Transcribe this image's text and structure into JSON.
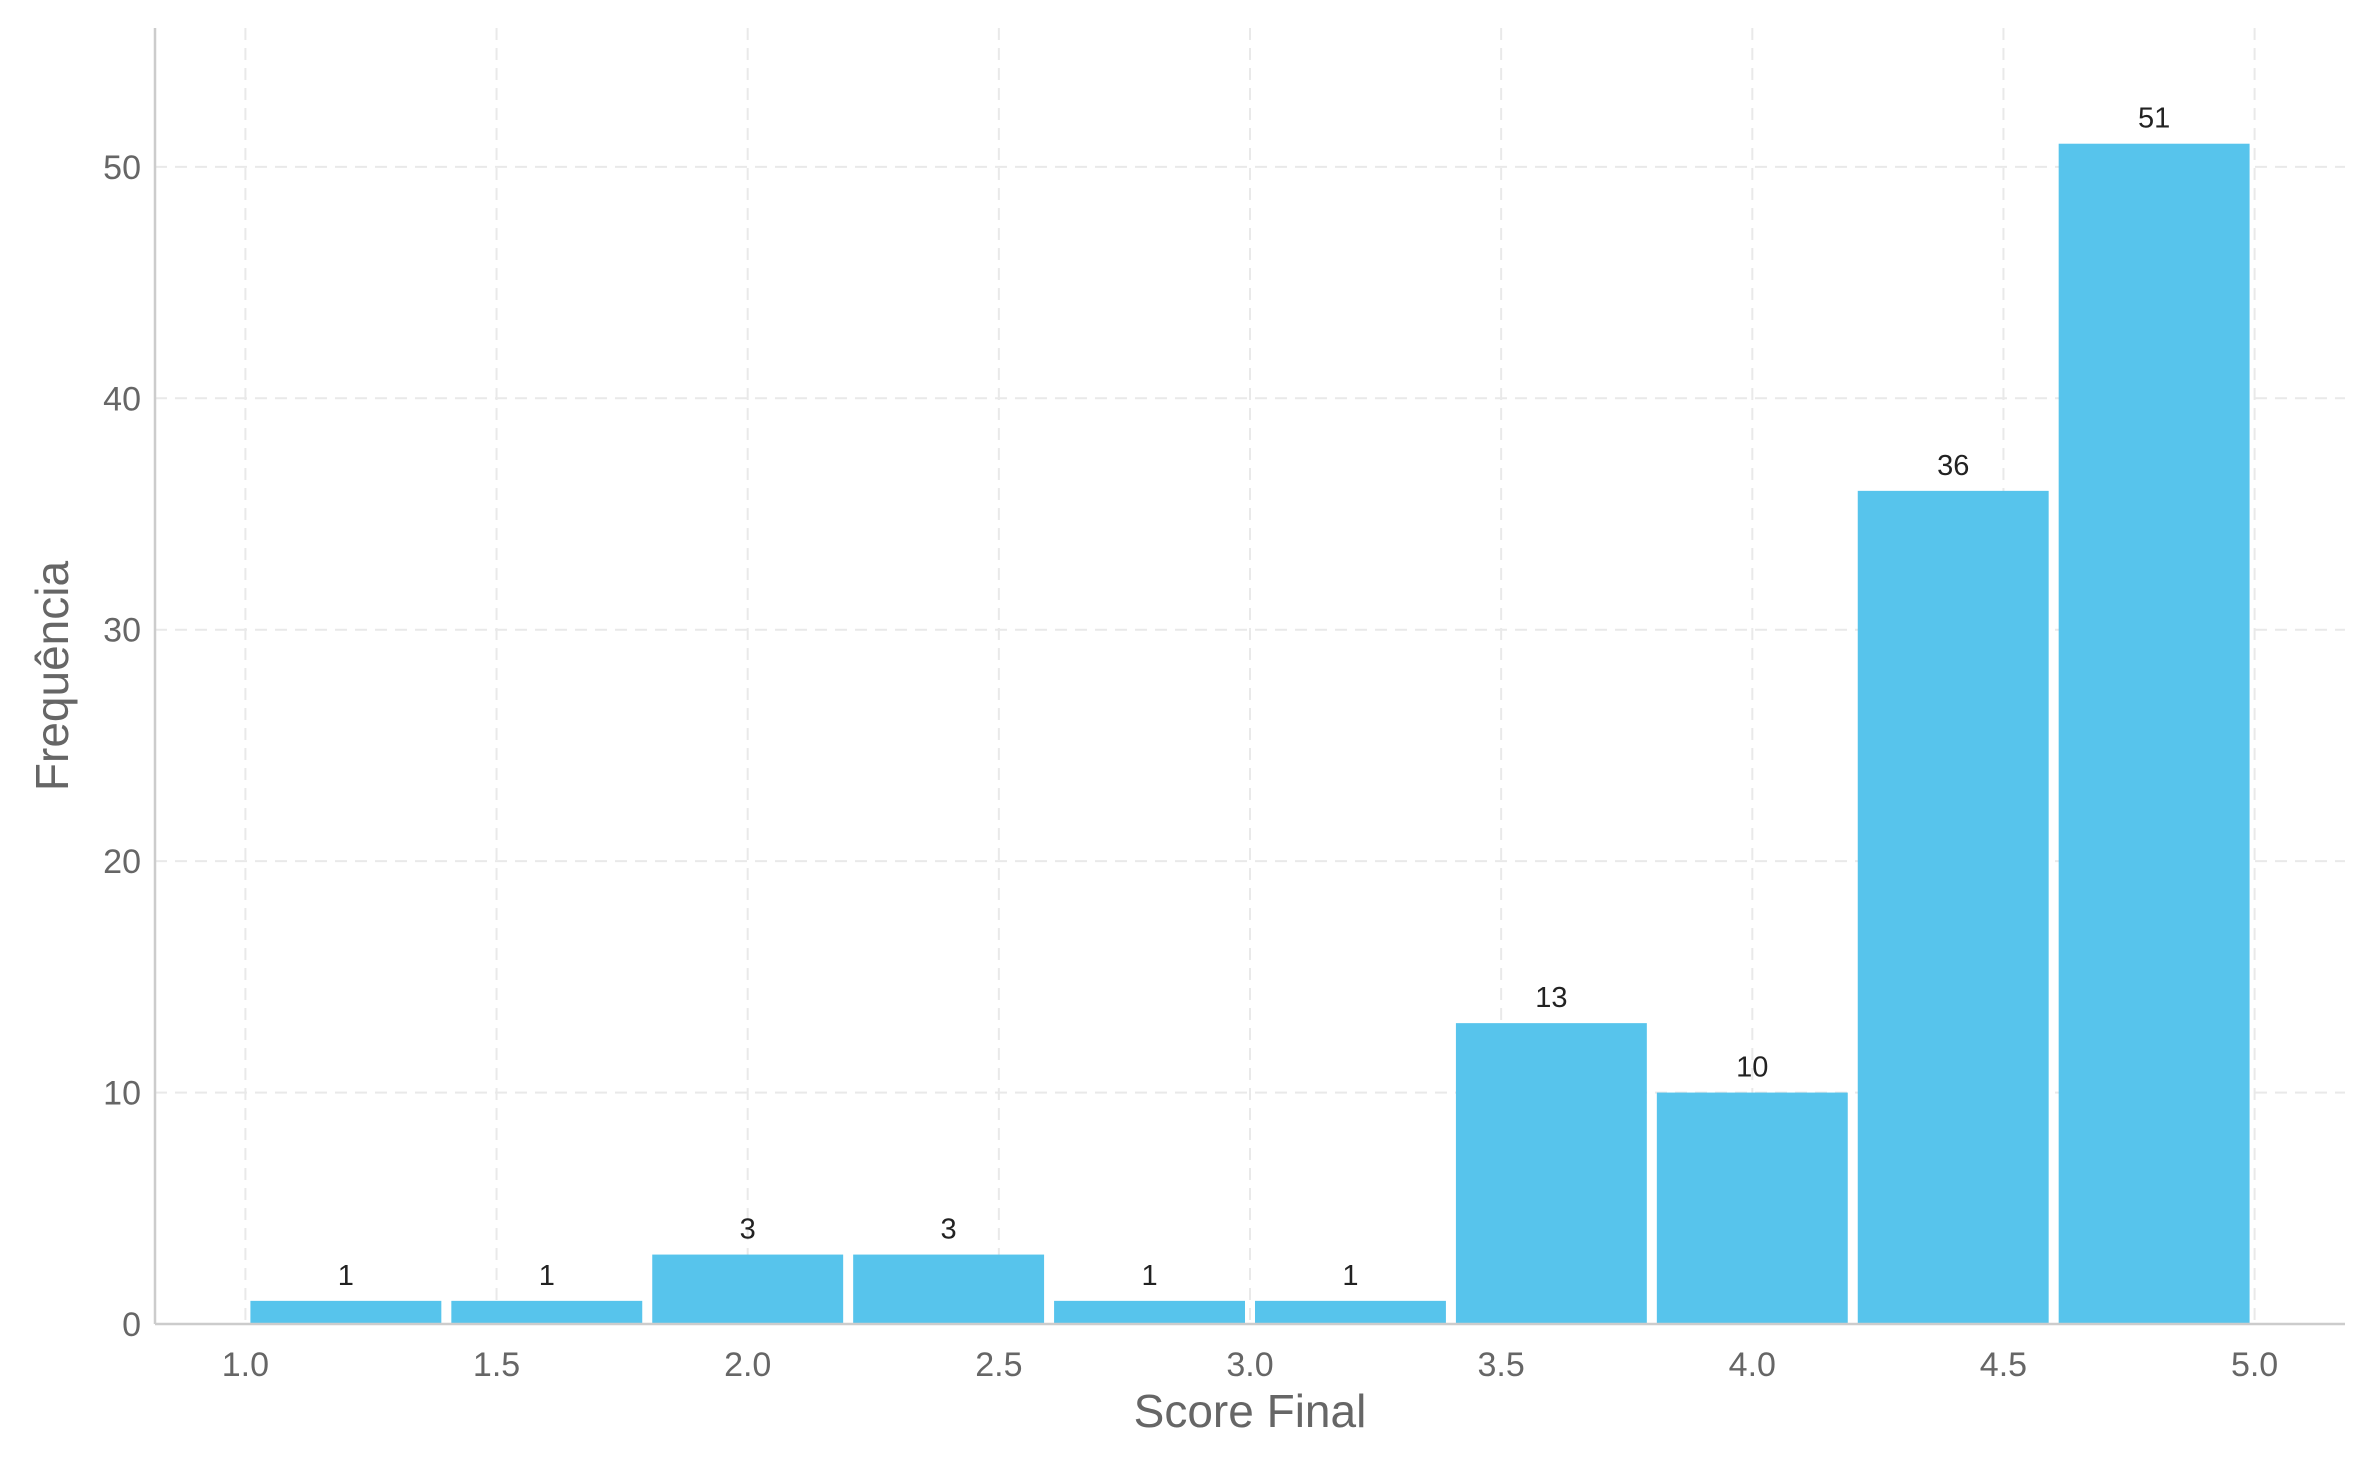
{
  "chart_data": {
    "type": "bar",
    "title": "",
    "xlabel": "Score Final",
    "ylabel": "Frequência",
    "bin_edges": [
      1.0,
      1.4,
      1.8,
      2.2,
      2.6,
      3.0,
      3.4,
      3.8,
      4.2,
      4.6,
      5.0
    ],
    "values": [
      1,
      1,
      3,
      3,
      1,
      1,
      13,
      10,
      36,
      51
    ],
    "value_labels": [
      "1",
      "1",
      "3",
      "3",
      "1",
      "1",
      "13",
      "10",
      "36",
      "51"
    ],
    "x_ticks": [
      1.0,
      1.5,
      2.0,
      2.5,
      3.0,
      3.5,
      4.0,
      4.5,
      5.0
    ],
    "x_tick_labels": [
      "1.0",
      "1.5",
      "2.0",
      "2.5",
      "3.0",
      "3.5",
      "4.0",
      "4.5",
      "5.0"
    ],
    "y_ticks": [
      0,
      10,
      20,
      30,
      40,
      50
    ],
    "y_tick_labels": [
      "0",
      "10",
      "20",
      "30",
      "40",
      "50"
    ],
    "xlim": [
      0.82,
      5.18
    ],
    "ylim": [
      0,
      56
    ],
    "grid": true,
    "legend": "none",
    "bar_color": "#57c4ec"
  }
}
